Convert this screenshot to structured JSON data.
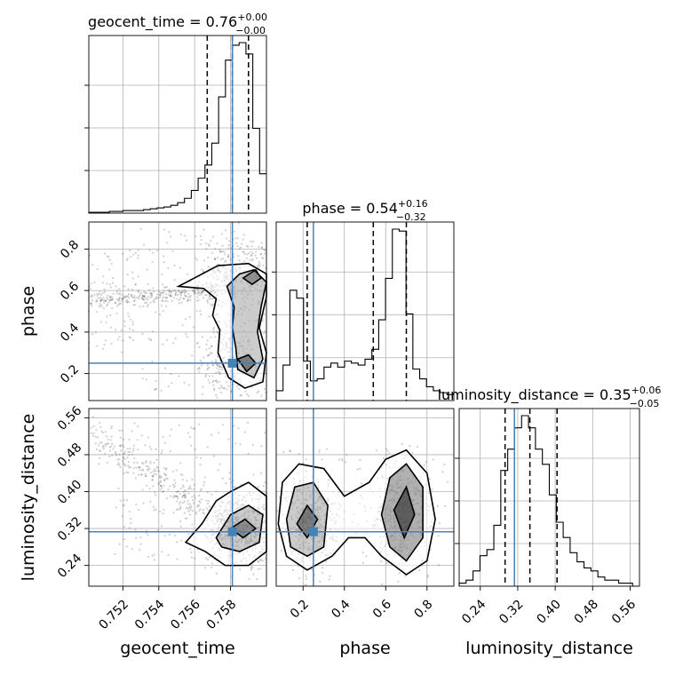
{
  "chart_data": {
    "type": "corner",
    "parameters": [
      "geocent_time",
      "phase",
      "luminosity_distance"
    ],
    "ranges": {
      "geocent_time": [
        0.7501,
        0.76
      ],
      "phase": [
        0.07,
        0.93
      ],
      "luminosity_distance": [
        0.195,
        0.58
      ]
    },
    "truths": {
      "geocent_time": 0.7581,
      "phase": 0.25,
      "luminosity_distance": 0.313
    },
    "ticks": {
      "geocent_time": [
        0.752,
        0.754,
        0.756,
        0.758
      ],
      "geocent_time_labels": [
        "0.752",
        "0.754",
        "0.756",
        "0.758"
      ],
      "phase": [
        0.2,
        0.4,
        0.6,
        0.8
      ],
      "phase_labels": [
        "0.2",
        "0.4",
        "0.6",
        "0.8"
      ],
      "luminosity_distance": [
        0.24,
        0.32,
        0.4,
        0.48,
        0.56
      ],
      "luminosity_distance_labels": [
        "0.24",
        "0.32",
        "0.40",
        "0.48",
        "0.56"
      ]
    },
    "axis_labels": {
      "geocent_time": "geocent_time",
      "phase": "phase",
      "luminosity_distance": "luminosity_distance"
    },
    "titles": {
      "geocent_time": {
        "name": "geocent_time",
        "median": "0.76",
        "plus": "+0.00",
        "minus": "−0.00"
      },
      "phase": {
        "name": "phase",
        "median": "0.54",
        "plus": "+0.16",
        "minus": "−0.32"
      },
      "luminosity_distance": {
        "name": "luminosity_distance",
        "median": "0.35",
        "plus": "+0.06",
        "minus": "−0.05"
      }
    },
    "quantiles": {
      "geocent_time": [
        0.7567,
        0.7581,
        0.759
      ],
      "phase": [
        0.22,
        0.54,
        0.7
      ],
      "luminosity_distance": [
        0.293,
        0.346,
        0.404
      ]
    },
    "histograms": {
      "geocent_time": {
        "edges_start": 0.7501,
        "edges_end": 0.76,
        "counts": [
          1,
          1,
          1,
          2,
          2,
          3,
          3,
          3,
          4,
          5,
          6,
          7,
          9,
          12,
          17,
          26,
          40,
          55,
          80,
          133,
          175,
          192,
          195,
          182,
          97,
          45
        ]
      },
      "phase": {
        "edges_start": 0.07,
        "edges_end": 0.93,
        "counts": [
          5,
          18,
          56,
          52,
          20,
          10,
          11,
          17,
          19,
          17,
          20,
          19,
          18,
          21,
          26,
          41,
          62,
          87,
          86,
          44,
          16,
          11,
          7,
          5,
          4,
          3
        ]
      },
      "luminosity_distance": {
        "edges_start": 0.195,
        "edges_end": 0.58,
        "counts": [
          1,
          2,
          5,
          10,
          12,
          20,
          38,
          45,
          52,
          56,
          52,
          45,
          40,
          30,
          21,
          16,
          11,
          8,
          6,
          5,
          3,
          2,
          2,
          1,
          1,
          0
        ]
      }
    }
  }
}
